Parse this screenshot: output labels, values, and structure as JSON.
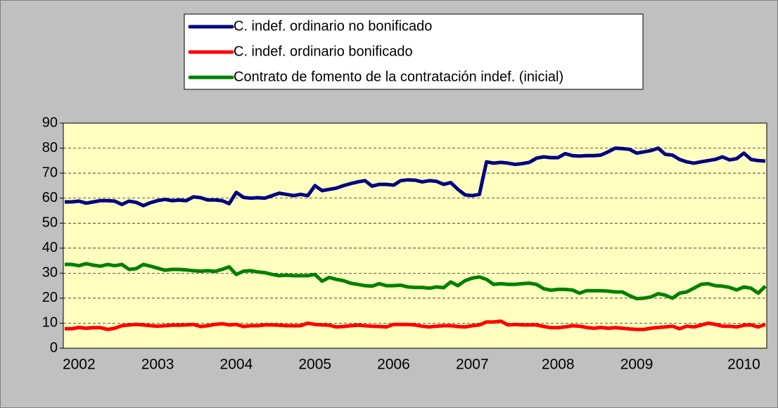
{
  "chart_data": {
    "type": "line",
    "categories": [
      null,
      null,
      "2002",
      null,
      null,
      null,
      null,
      null,
      null,
      null,
      null,
      null,
      null,
      "2003",
      null,
      null,
      null,
      null,
      null,
      null,
      null,
      null,
      null,
      null,
      "2004",
      null,
      null,
      null,
      null,
      null,
      null,
      null,
      null,
      null,
      null,
      "2005",
      null,
      null,
      null,
      null,
      null,
      null,
      null,
      null,
      null,
      null,
      "2006",
      null,
      null,
      null,
      null,
      null,
      null,
      null,
      null,
      null,
      null,
      "2007",
      null,
      null,
      null,
      null,
      null,
      null,
      null,
      null,
      null,
      null,
      null,
      "2008",
      null,
      null,
      null,
      null,
      null,
      null,
      null,
      null,
      null,
      null,
      "2009",
      null,
      null,
      null,
      null,
      null,
      null,
      null,
      null,
      null,
      null,
      null,
      null,
      null,
      null,
      "2010",
      null,
      null,
      null
    ],
    "series": [
      {
        "name": "C. indef. ordinario no bonificado",
        "color": "#000080",
        "values": [
          58.5,
          58.5,
          58.8,
          58.0,
          58.5,
          59.0,
          59.0,
          58.8,
          57.5,
          58.8,
          58.3,
          57.0,
          58.2,
          59.0,
          59.5,
          59.0,
          59.2,
          59.0,
          60.5,
          60.2,
          59.3,
          59.3,
          59.0,
          57.8,
          62.3,
          60.3,
          60.0,
          60.2,
          60.0,
          61.0,
          62.0,
          61.5,
          61.0,
          61.5,
          61.0,
          65.0,
          63.0,
          63.5,
          64.0,
          65.0,
          65.8,
          66.5,
          67.0,
          64.8,
          65.5,
          65.5,
          65.2,
          67.0,
          67.3,
          67.2,
          66.5,
          67.0,
          66.7,
          65.5,
          66.2,
          63.5,
          61.3,
          61.0,
          61.5,
          74.5,
          74.0,
          74.3,
          74.0,
          73.5,
          73.8,
          74.3,
          76.0,
          76.5,
          76.2,
          76.2,
          77.8,
          77.0,
          76.8,
          77.0,
          77.0,
          77.2,
          78.5,
          80.0,
          79.8,
          79.5,
          78.0,
          78.5,
          79.0,
          80.0,
          77.5,
          77.2,
          75.5,
          74.5,
          74.0,
          74.5,
          75.0,
          75.5,
          76.5,
          75.3,
          75.8,
          78.0,
          75.5,
          75.0,
          74.8
        ]
      },
      {
        "name": "C. indef. ordinario bonificado",
        "color": "#ff0000",
        "values": [
          7.8,
          7.8,
          8.3,
          8.0,
          8.2,
          8.2,
          7.5,
          8.0,
          9.0,
          9.3,
          9.5,
          9.3,
          9.0,
          8.8,
          9.0,
          9.2,
          9.2,
          9.3,
          9.5,
          8.7,
          9.0,
          9.5,
          9.8,
          9.3,
          9.5,
          8.7,
          9.0,
          9.0,
          9.3,
          9.3,
          9.2,
          9.0,
          9.0,
          9.0,
          10.0,
          9.5,
          9.3,
          9.2,
          8.5,
          8.7,
          9.0,
          9.2,
          9.0,
          8.8,
          8.7,
          8.5,
          9.5,
          9.5,
          9.5,
          9.3,
          8.8,
          8.5,
          8.8,
          9.0,
          9.0,
          8.7,
          8.5,
          9.0,
          9.3,
          10.5,
          10.5,
          10.8,
          9.3,
          9.5,
          9.3,
          9.3,
          9.3,
          8.7,
          8.2,
          8.2,
          8.5,
          9.0,
          8.8,
          8.3,
          8.0,
          8.3,
          8.0,
          8.2,
          8.0,
          7.7,
          7.5,
          7.5,
          8.0,
          8.3,
          8.5,
          8.8,
          7.8,
          8.8,
          8.5,
          9.2,
          10.0,
          9.5,
          8.8,
          8.8,
          8.5,
          9.2,
          9.3,
          8.5,
          9.5
        ]
      },
      {
        "name": "Contrato de fomento de la contratación indef. (inicial)",
        "color": "#008000",
        "values": [
          33.5,
          33.5,
          33.0,
          33.8,
          33.2,
          32.8,
          33.5,
          33.0,
          33.5,
          31.5,
          31.8,
          33.5,
          32.8,
          32.0,
          31.2,
          31.5,
          31.5,
          31.3,
          31.0,
          30.8,
          31.0,
          30.7,
          31.5,
          32.5,
          29.5,
          30.8,
          31.0,
          30.5,
          30.2,
          29.5,
          29.0,
          29.2,
          29.0,
          29.0,
          29.0,
          29.5,
          26.8,
          28.3,
          27.5,
          27.0,
          26.0,
          25.5,
          25.0,
          24.8,
          25.8,
          25.0,
          25.0,
          25.2,
          24.5,
          24.3,
          24.3,
          24.0,
          24.5,
          24.2,
          26.5,
          25.0,
          27.0,
          28.0,
          28.5,
          27.5,
          25.5,
          25.8,
          25.5,
          25.5,
          25.8,
          26.0,
          25.5,
          23.8,
          23.2,
          23.5,
          23.5,
          23.3,
          22.0,
          23.0,
          23.0,
          23.0,
          22.8,
          22.5,
          22.5,
          21.0,
          19.8,
          20.0,
          20.5,
          21.8,
          21.2,
          20.0,
          22.0,
          22.5,
          24.0,
          25.5,
          25.8,
          25.0,
          24.8,
          24.3,
          23.3,
          24.5,
          24.0,
          22.0,
          24.8
        ]
      }
    ],
    "ylim": [
      0,
      90
    ],
    "yticks": [
      0,
      10,
      20,
      30,
      40,
      50,
      60,
      70,
      80,
      90
    ],
    "grid": true
  }
}
